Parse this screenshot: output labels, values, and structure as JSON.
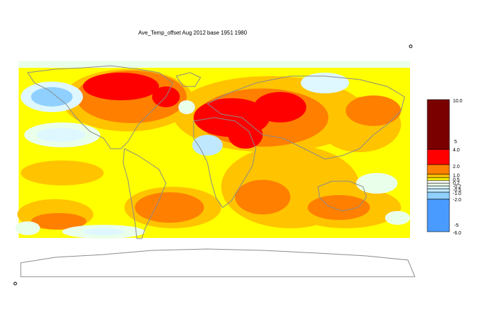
{
  "title": "Ave_Temp_offset Aug 2012  base 1951 1980",
  "colors": {
    "coast": "#8a8a8a",
    "bins": {
      "p10": "#7a0000",
      "p5": "#ff0000",
      "p4": "#ff7f00",
      "p2": "#ffc300",
      "p1": "#ffff00",
      "n02": "#eaffea",
      "n05": "#dff7ff",
      "n1": "#bfe8ff",
      "n2": "#8fd0ff",
      "n6": "#4a9bff"
    }
  },
  "legend": {
    "labels": [
      "10.0",
      "5",
      "4.0",
      "2.0",
      "1.0",
      "0.5",
      "0.2",
      "-0.2",
      "-0.5",
      "-1.0",
      "-2.0",
      "-5",
      "-6.0"
    ]
  }
}
